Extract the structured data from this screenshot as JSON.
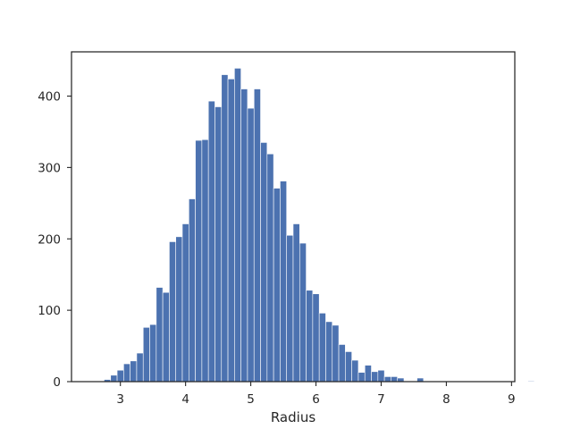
{
  "chart_data": {
    "type": "bar",
    "title": "",
    "xlabel": "Radius",
    "ylabel": "",
    "xlim": [
      2.25,
      9.05
    ],
    "ylim": [
      0,
      462
    ],
    "xticks": [
      3,
      4,
      5,
      6,
      7,
      8,
      9
    ],
    "yticks": [
      0,
      100,
      200,
      300,
      400
    ],
    "bin_start": 2.55,
    "bin_width": 0.1,
    "values": [
      0,
      1,
      3,
      9,
      16,
      25,
      29,
      40,
      76,
      80,
      132,
      125,
      196,
      203,
      221,
      256,
      338,
      339,
      393,
      385,
      430,
      424,
      439,
      410,
      383,
      410,
      335,
      319,
      271,
      281,
      205,
      221,
      194,
      128,
      123,
      96,
      84,
      79,
      52,
      42,
      30,
      13,
      23,
      14,
      16,
      7,
      7,
      5,
      0,
      0,
      5,
      0,
      0,
      0,
      0,
      0,
      0,
      0,
      0,
      0,
      0,
      0,
      0,
      0,
      0,
      0,
      0,
      1
    ],
    "grid": false,
    "legend": "none",
    "bar_color": "#4c72b0"
  }
}
